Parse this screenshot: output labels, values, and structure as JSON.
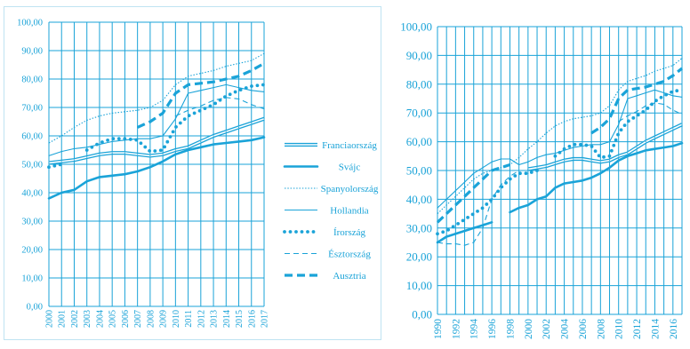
{
  "colors": {
    "line": "#1aa3d8",
    "grid": "#1aa3d8",
    "frame": "#bfe3f2"
  },
  "chart_data": [
    {
      "type": "line",
      "ylim": [
        0,
        100
      ],
      "y_ticks": [
        "0,00",
        "10,00",
        "20,00",
        "30,00",
        "40,00",
        "50,00",
        "60,00",
        "70,00",
        "80,00",
        "90,00",
        "100,00"
      ],
      "x": [
        2000,
        2001,
        2002,
        2003,
        2004,
        2005,
        2006,
        2007,
        2008,
        2009,
        2010,
        2011,
        2012,
        2013,
        2014,
        2015,
        2016,
        2017
      ],
      "x_ticks": [
        "2000",
        "2001",
        "2002",
        "2003",
        "2004",
        "2005",
        "2006",
        "2007",
        "2008",
        "2009",
        "2010",
        "2011",
        "2012",
        "2013",
        "2014",
        "2015",
        "2016",
        "2017"
      ],
      "grid": true,
      "legend_position": "right",
      "series": [
        {
          "name": "Franciaország",
          "style": "double",
          "values": [
            50.5,
            51,
            51.5,
            52.5,
            53.5,
            54,
            54,
            53.5,
            53,
            53.5,
            55,
            56,
            58,
            60,
            61.5,
            63,
            64.5,
            66
          ]
        },
        {
          "name": "Svájc",
          "style": "solid-thick",
          "values": [
            38,
            40,
            41,
            44,
            45.5,
            46,
            46.5,
            47.5,
            49,
            51,
            53.5,
            55,
            56,
            57,
            57.5,
            58,
            58.5,
            59.5
          ]
        },
        {
          "name": "Spanyolország",
          "style": "dotted-thin",
          "values": [
            57.5,
            60,
            63,
            65.5,
            67,
            68,
            68.5,
            69,
            70,
            72.5,
            78,
            81,
            82,
            83,
            84.5,
            85.5,
            86.5,
            89
          ]
        },
        {
          "name": "Hollandia",
          "style": "solid-thin",
          "values": [
            53,
            54.5,
            55.5,
            56,
            57,
            58,
            58.5,
            59,
            59,
            60,
            66,
            75,
            76,
            77,
            78,
            77,
            76,
            75.5
          ]
        },
        {
          "name": "Írország",
          "style": "dots",
          "values": [
            49,
            50,
            null,
            55,
            57.5,
            59,
            59,
            58.5,
            54.5,
            55,
            63,
            67,
            69,
            71,
            74,
            76,
            77.5,
            78
          ]
        },
        {
          "name": "Észtország",
          "style": "dashed-thin",
          "values": [
            null,
            null,
            null,
            null,
            null,
            null,
            null,
            null,
            null,
            null,
            67,
            69,
            70.5,
            72.5,
            73.5,
            73,
            71,
            69.5
          ]
        },
        {
          "name": "Ausztria",
          "style": "dashed-thick",
          "values": [
            null,
            null,
            null,
            null,
            null,
            null,
            null,
            63,
            65,
            68,
            75,
            78,
            78.5,
            79,
            80,
            81,
            83,
            85.5
          ]
        }
      ]
    },
    {
      "type": "line",
      "ylim": [
        0,
        100
      ],
      "y_ticks": [
        "0,00",
        "10,00",
        "20,00",
        "30,00",
        "40,00",
        "50,00",
        "60,00",
        "70,00",
        "80,00",
        "90,00",
        "100,00"
      ],
      "x_start": 1990,
      "x_end": 2017,
      "x_ticks": [
        "1990",
        "1992",
        "1994",
        "1996",
        "1998",
        "2000",
        "2002",
        "2004",
        "2006",
        "2008",
        "2010",
        "2012",
        "2014",
        "2016"
      ],
      "grid": true,
      "series": [
        {
          "style": "double",
          "values": [
            null,
            null,
            null,
            null,
            null,
            null,
            null,
            null,
            null,
            null,
            50.5,
            51,
            51.5,
            52.5,
            53.5,
            54,
            54,
            53.5,
            53,
            53.5,
            55,
            56,
            58,
            60,
            61.5,
            63,
            64.5,
            66
          ]
        },
        {
          "style": "solid-thick",
          "values": [
            25,
            27,
            28,
            29,
            30,
            31,
            32,
            null,
            35.5,
            37,
            38,
            40,
            41,
            44,
            45.5,
            46,
            46.5,
            47.5,
            49,
            51,
            53.5,
            55,
            56,
            57,
            57.5,
            58,
            58.5,
            59.5
          ]
        },
        {
          "style": "dotted-thin",
          "values": [
            35,
            38,
            41,
            44,
            47,
            49,
            50,
            51,
            52,
            54.5,
            57.5,
            60,
            63,
            65.5,
            67,
            68,
            68.5,
            69,
            70,
            72.5,
            78,
            81,
            82,
            83,
            84.5,
            85.5,
            86.5,
            89
          ]
        },
        {
          "style": "solid-thin",
          "values": [
            37,
            40,
            43,
            46,
            49,
            51,
            53,
            54,
            54,
            52,
            53,
            54.5,
            55.5,
            56,
            57,
            58,
            58.5,
            59,
            59,
            60,
            66,
            75,
            76,
            77,
            78,
            77,
            76,
            75.5
          ]
        },
        {
          "style": "dots",
          "values": [
            28,
            29,
            31,
            33,
            35,
            37,
            40,
            44,
            47,
            49,
            49,
            50,
            null,
            55,
            57.5,
            59,
            59,
            58.5,
            54.5,
            55,
            63,
            67,
            69,
            71,
            74,
            76,
            77.5,
            78
          ]
        },
        {
          "style": "dashed-thin",
          "values": [
            25,
            24.5,
            24.5,
            24,
            25,
            30,
            40,
            45,
            48,
            50,
            null,
            null,
            null,
            null,
            null,
            null,
            null,
            null,
            null,
            null,
            67,
            69,
            70.5,
            72.5,
            73.5,
            73,
            71,
            69.5
          ]
        },
        {
          "style": "dashed-thick",
          "values": [
            32,
            35,
            38,
            41,
            44,
            47,
            50,
            51,
            52,
            null,
            null,
            null,
            null,
            null,
            null,
            null,
            null,
            63,
            65,
            68,
            75,
            78,
            78.5,
            79,
            80,
            81,
            83,
            85.5
          ]
        }
      ]
    }
  ]
}
